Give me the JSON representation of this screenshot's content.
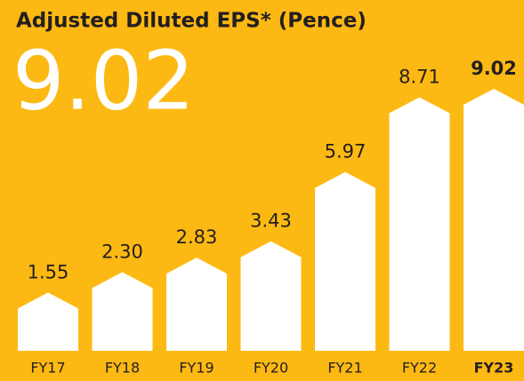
{
  "chart_data": {
    "type": "bar",
    "title": "Adjusted Diluted EPS* (Pence)",
    "headline": "9.02",
    "categories": [
      "FY17",
      "FY18",
      "FY19",
      "FY20",
      "FY21",
      "FY22",
      "FY23"
    ],
    "values": [
      1.55,
      2.3,
      2.83,
      3.43,
      5.97,
      8.71,
      9.02
    ],
    "value_labels": [
      "1.55",
      "2.30",
      "2.83",
      "3.43",
      "5.97",
      "8.71",
      "9.02"
    ],
    "color": "#ffffff"
  }
}
